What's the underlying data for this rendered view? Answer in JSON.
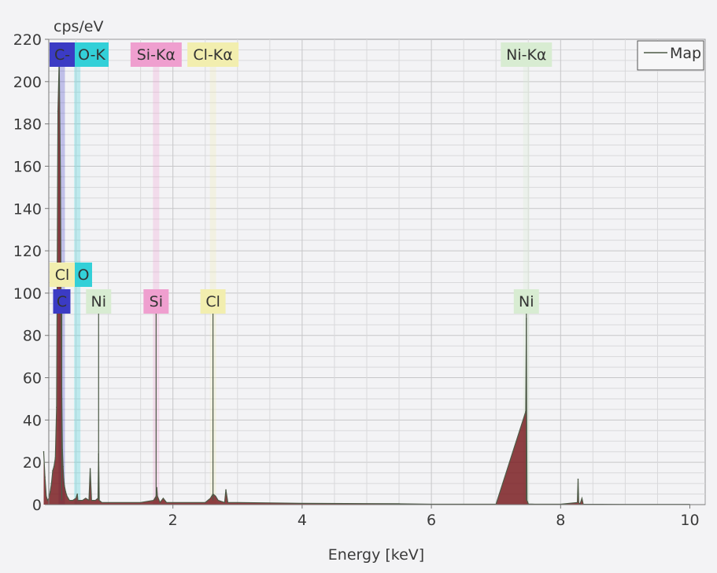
{
  "chart_data": {
    "type": "line",
    "ylabel": "cps/eV",
    "xlabel": "Energy [keV]",
    "xlim": [
      0,
      10
    ],
    "ylim": [
      0,
      220
    ],
    "x_ticks": [
      2,
      4,
      6,
      8,
      10
    ],
    "y_ticks": [
      0,
      20,
      40,
      60,
      80,
      100,
      120,
      140,
      160,
      180,
      200,
      220
    ],
    "grid": true,
    "legend": {
      "position": "top-right",
      "entries": [
        "Map"
      ]
    },
    "series": [
      {
        "name": "Map",
        "color": "#4d5a46",
        "fill": "#7a1f22",
        "x": [
          0.0,
          0.02,
          0.04,
          0.06,
          0.08,
          0.1,
          0.12,
          0.14,
          0.16,
          0.18,
          0.2,
          0.22,
          0.24,
          0.26,
          0.27,
          0.28,
          0.29,
          0.3,
          0.31,
          0.32,
          0.34,
          0.36,
          0.38,
          0.4,
          0.45,
          0.5,
          0.52,
          0.53,
          0.55,
          0.6,
          0.65,
          0.7,
          0.72,
          0.74,
          0.8,
          0.84,
          0.85,
          0.86,
          0.9,
          1.0,
          1.2,
          1.5,
          1.7,
          1.74,
          1.75,
          1.76,
          1.8,
          1.85,
          1.9,
          2.0,
          2.3,
          2.5,
          2.58,
          2.62,
          2.66,
          2.7,
          2.8,
          2.82,
          2.85,
          3.0,
          3.5,
          4.0,
          5.0,
          5.5,
          6.0,
          7.0,
          7.46,
          7.47,
          7.48,
          7.5,
          7.6,
          8.0,
          8.26,
          8.27,
          8.28,
          8.3,
          8.33,
          8.35,
          9.0,
          10.0
        ],
        "y": [
          25,
          13,
          4,
          2,
          3,
          6,
          10,
          16,
          18,
          22,
          46,
          186,
          210,
          155,
          90,
          50,
          26,
          18,
          12,
          9,
          6,
          4,
          3,
          2,
          2,
          3,
          5,
          2,
          2,
          2,
          3,
          2,
          17,
          2,
          2,
          3,
          24,
          2,
          1,
          1,
          1,
          1,
          2,
          4,
          8,
          4,
          1,
          3,
          1,
          1,
          1,
          1,
          3,
          5,
          4,
          2,
          1,
          7,
          1,
          1,
          0.8,
          0.6,
          0.5,
          0.4,
          0.2,
          0.2,
          44,
          88,
          2,
          0.3,
          0.2,
          0.2,
          1,
          12,
          1,
          0.2,
          3,
          0.2,
          0.1,
          0.1
        ]
      }
    ],
    "element_markers": [
      {
        "label": "C-",
        "energy": 0.28,
        "color": "#3b3bc4",
        "text_color": "#ffffff",
        "row": "top"
      },
      {
        "label": "O-K",
        "energy": 0.52,
        "color": "#33d0d8",
        "text_color": "#222222",
        "row": "top"
      },
      {
        "label": "Si-Kα",
        "energy": 1.74,
        "color": "#ef9fcf",
        "text_color": "#333333",
        "row": "top"
      },
      {
        "label": "Cl-Kα",
        "energy": 2.62,
        "color": "#f2eeaf",
        "text_color": "#333333",
        "row": "top"
      },
      {
        "label": "Ni-Kα",
        "energy": 7.47,
        "color": "#d8ecd2",
        "text_color": "#333333",
        "row": "top"
      },
      {
        "label": "Cl",
        "energy": 0.18,
        "color": "#f2eeaf",
        "text_color": "#333333",
        "row": "mid"
      },
      {
        "label": "O",
        "energy": 0.52,
        "color": "#33d0d8",
        "text_color": "#222222",
        "row": "mid"
      },
      {
        "label": "C",
        "energy": 0.28,
        "color": "#3b3bc4",
        "text_color": "#ffffff",
        "row": "low"
      },
      {
        "label": "Ni",
        "energy": 0.85,
        "color": "#d8ecd2",
        "text_color": "#333333",
        "row": "low"
      },
      {
        "label": "Si",
        "energy": 1.74,
        "color": "#ef9fcf",
        "text_color": "#333333",
        "row": "low"
      },
      {
        "label": "Cl",
        "energy": 2.62,
        "color": "#f2eeaf",
        "text_color": "#333333",
        "row": "low"
      },
      {
        "label": "Ni",
        "energy": 7.47,
        "color": "#d8ecd2",
        "text_color": "#333333",
        "row": "low"
      }
    ]
  }
}
